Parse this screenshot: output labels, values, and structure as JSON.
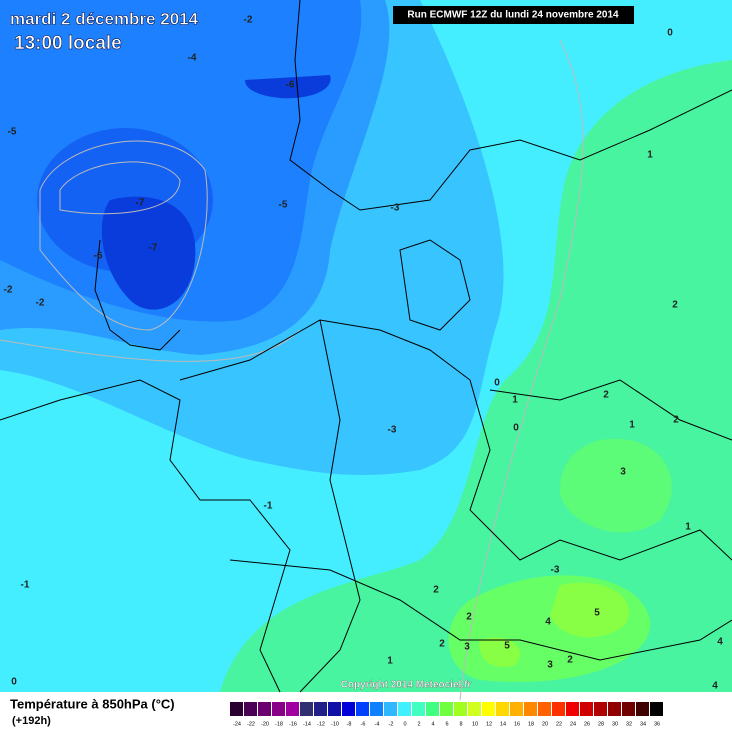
{
  "header": {
    "date": "mardi 2 décembre 2014",
    "time": "13:00 locale",
    "run": "Run ECMWF 12Z du lundi 24 novembre 2014"
  },
  "map": {
    "copyright": "Copyright 2014 Meteociel.fr",
    "contour_labels": [
      -2,
      -4,
      -5,
      -6,
      -7,
      -7,
      -6,
      -2,
      -2,
      -5,
      -3,
      0,
      1,
      2,
      0,
      1,
      2,
      0,
      1,
      2,
      -3,
      3,
      1,
      -1,
      -1,
      -3,
      2,
      2,
      5,
      4,
      2,
      5,
      3,
      3,
      2,
      4,
      4,
      0,
      1
    ]
  },
  "legend": {
    "title": "Température à 850hPa (°C)",
    "subtitle": "(+192h)",
    "ticks": [
      -24,
      -22,
      -20,
      -18,
      -16,
      -14,
      -12,
      -10,
      -8,
      -6,
      -4,
      -2,
      0,
      2,
      4,
      6,
      8,
      10,
      12,
      14,
      16,
      18,
      20,
      22,
      24,
      26,
      28,
      30,
      32,
      34,
      36
    ],
    "colors": [
      "#2a0030",
      "#4a0055",
      "#6a0070",
      "#880088",
      "#a000a0",
      "#303070",
      "#202088",
      "#1010a8",
      "#0000d8",
      "#0040ff",
      "#1080ff",
      "#30b8ff",
      "#40f0ff",
      "#40ffc0",
      "#40ff80",
      "#70ff40",
      "#a0ff20",
      "#d0ff20",
      "#ffff00",
      "#ffd800",
      "#ffb000",
      "#ff8800",
      "#ff6000",
      "#ff3000",
      "#f00000",
      "#d00000",
      "#b00000",
      "#900000",
      "#700000",
      "#400000",
      "#000000"
    ]
  }
}
